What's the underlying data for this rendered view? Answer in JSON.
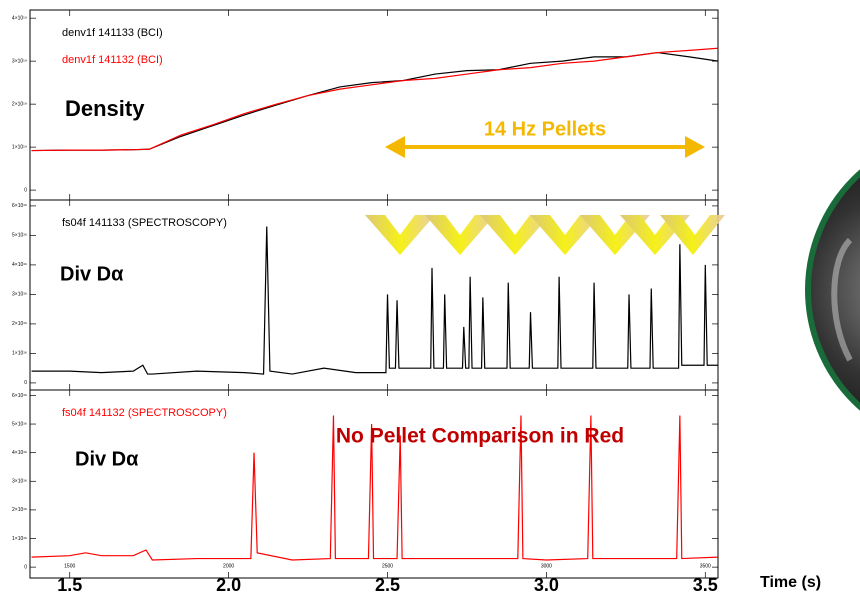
{
  "chart_data": [
    {
      "type": "line",
      "x": [
        1380,
        1500,
        1600,
        1700,
        1750,
        1850,
        1950,
        2050,
        2150,
        2250,
        2350,
        2450,
        2550,
        2650,
        2750,
        2850,
        2950,
        3050,
        3150,
        3250,
        3350,
        3450,
        3540
      ],
      "series": [
        {
          "name": "denv1f  141133 (BCI)",
          "color": "#000000",
          "values": [
            9.2e+18,
            9.3e+18,
            9.3e+18,
            9.4e+18,
            9.5e+18,
            1.25e+19,
            1.5e+19,
            1.75e+19,
            1.98e+19,
            2.2e+19,
            2.4e+19,
            2.5e+19,
            2.55e+19,
            2.7e+19,
            2.78e+19,
            2.8e+19,
            2.95e+19,
            3e+19,
            3.1e+19,
            3.1e+19,
            3.2e+19,
            3.1e+19,
            3e+19
          ]
        },
        {
          "name": "denv1f  141132 (BCI)",
          "color": "#ff0000",
          "values": [
            9.2e+18,
            9.3e+18,
            9.3e+18,
            9.4e+18,
            9.5e+18,
            1.28e+19,
            1.52e+19,
            1.78e+19,
            2e+19,
            2.2e+19,
            2.35e+19,
            2.45e+19,
            2.55e+19,
            2.6e+19,
            2.7e+19,
            2.8e+19,
            2.85e+19,
            2.95e+19,
            3e+19,
            3.1e+19,
            3.2e+19,
            3.25e+19,
            3.3e+19
          ]
        }
      ],
      "xlim": [
        1375,
        3540
      ],
      "xticks": [
        1500,
        2000,
        2500,
        3000,
        3500
      ],
      "ylim": [
        -2.3e+18,
        4.19e+19
      ],
      "yticks": [
        0,
        {
          "value": 1e+19,
          "label": "1×10¹⁹"
        },
        {
          "value": 2e+19,
          "label": "2×10¹⁹"
        },
        {
          "value": 3e+19,
          "label": "3×10¹⁹"
        },
        {
          "value": 4e+19,
          "label": "4×10¹⁹"
        }
      ],
      "annotations": [
        "Density",
        "14 Hz Pellets"
      ]
    },
    {
      "type": "line",
      "x": [
        1380,
        1500,
        1600,
        1700,
        1730,
        1745,
        1760,
        1900,
        2050,
        2110,
        2120,
        2130,
        2200,
        2300,
        2400,
        2495,
        2500,
        2506,
        2525,
        2530,
        2536,
        2636,
        2640,
        2646,
        2676,
        2680,
        2686,
        2736,
        2740,
        2746,
        2756,
        2760,
        2766,
        2796,
        2800,
        2806,
        2876,
        2880,
        2886,
        2946,
        2950,
        2956,
        3036,
        3040,
        3046,
        3146,
        3150,
        3156,
        3256,
        3260,
        3266,
        3326,
        3330,
        3336,
        3416,
        3420,
        3426,
        3496,
        3500,
        3506,
        3540
      ],
      "series": [
        {
          "name": "fs04f  141133 (SPECTROSCOPY)",
          "color": "#000000",
          "values": [
            4000000000000000.0,
            4000000000000000.0,
            3500000000000000.0,
            4000000000000000.0,
            6000000000000000.0,
            3000000000000000.0,
            3000000000000000.0,
            4000000000000000.0,
            3500000000000000.0,
            3000000000000000.0,
            5.3e+16,
            4000000000000000.0,
            3000000000000000.0,
            5000000000000000.0,
            3500000000000000.0,
            3500000000000000.0,
            3e+16,
            5000000000000000.0,
            5000000000000000.0,
            2.8e+16,
            5000000000000000.0,
            5000000000000000.0,
            3.9e+16,
            5000000000000000.0,
            5000000000000000.0,
            3e+16,
            5000000000000000.0,
            5000000000000000.0,
            1.9e+16,
            5000000000000000.0,
            5000000000000000.0,
            3.6e+16,
            5000000000000000.0,
            5000000000000000.0,
            2.9e+16,
            5000000000000000.0,
            5000000000000000.0,
            3.4e+16,
            5000000000000000.0,
            5000000000000000.0,
            2.4e+16,
            5000000000000000.0,
            5000000000000000.0,
            3.6e+16,
            5000000000000000.0,
            5000000000000000.0,
            3.4e+16,
            5000000000000000.0,
            5000000000000000.0,
            3e+16,
            5000000000000000.0,
            5000000000000000.0,
            3.2e+16,
            5000000000000000.0,
            5000000000000000.0,
            4.7e+16,
            6000000000000000.0,
            6000000000000000.0,
            4e+16,
            6000000000000000.0,
            6000000000000000.0
          ]
        }
      ],
      "xlim": [
        1375,
        3540
      ],
      "xticks": [
        1500,
        2000,
        2500,
        3000,
        3500
      ],
      "ylim": [
        -2400000000000000.0,
        6.2e+16
      ],
      "yticks": [
        0,
        {
          "value": 1e+16,
          "label": "1×10¹⁶"
        },
        {
          "value": 2e+16,
          "label": "2×10¹⁶"
        },
        {
          "value": 3e+16,
          "label": "3×10¹⁶"
        },
        {
          "value": 4e+16,
          "label": "4×10¹⁶"
        },
        {
          "value": 5e+16,
          "label": "5×10¹⁶"
        },
        {
          "value": 6e+16,
          "label": "6×10¹⁶"
        }
      ],
      "annotations": [
        "Div Dα"
      ]
    },
    {
      "type": "line",
      "x": [
        1380,
        1500,
        1550,
        1600,
        1700,
        1740,
        1760,
        1900,
        2070,
        2080,
        2090,
        2200,
        2320,
        2330,
        2336,
        2440,
        2450,
        2456,
        2530,
        2540,
        2546,
        2700,
        2910,
        2920,
        2926,
        3000,
        3130,
        3140,
        3146,
        3300,
        3410,
        3420,
        3426,
        3540
      ],
      "series": [
        {
          "name": "fs04f  141132 (SPECTROSCOPY)",
          "color": "#ff0000",
          "values": [
            3500000000000000.0,
            4000000000000000.0,
            5000000000000000.0,
            4000000000000000.0,
            4000000000000000.0,
            6000000000000000.0,
            2500000000000000.0,
            3000000000000000.0,
            3000000000000000.0,
            4e+16,
            5000000000000000.0,
            2500000000000000.0,
            3000000000000000.0,
            5.3e+16,
            3000000000000000.0,
            3000000000000000.0,
            5e+16,
            3000000000000000.0,
            3000000000000000.0,
            4.6e+16,
            3000000000000000.0,
            3000000000000000.0,
            3000000000000000.0,
            5.3e+16,
            3000000000000000.0,
            2500000000000000.0,
            3000000000000000.0,
            5.3e+16,
            3000000000000000.0,
            3000000000000000.0,
            3000000000000000.0,
            5.3e+16,
            3000000000000000.0,
            3500000000000000.0
          ]
        }
      ],
      "xlim": [
        1375,
        3540
      ],
      "xticks": [
        1500,
        2000,
        2500,
        3000,
        3500
      ],
      "xtick_labels": [
        "1.5",
        "2.0",
        "2.5",
        "3.0",
        "3.5"
      ],
      "xlabel": "Time (s)",
      "ylim": [
        -3800000000000000.0,
        6.19e+16
      ],
      "yticks": [
        0,
        {
          "value": 1e+16,
          "label": "1×10¹⁶"
        },
        {
          "value": 2e+16,
          "label": "2×10¹⁶"
        },
        {
          "value": 3e+16,
          "label": "3×10¹⁶"
        },
        {
          "value": 4e+16,
          "label": "4×10¹⁶"
        },
        {
          "value": 5e+16,
          "label": "5×10¹⁶"
        },
        {
          "value": 6e+16,
          "label": "6×10¹⁶"
        }
      ],
      "annotations": [
        "No Pellet Comparison in Red",
        "Div Dα"
      ]
    }
  ]
}
